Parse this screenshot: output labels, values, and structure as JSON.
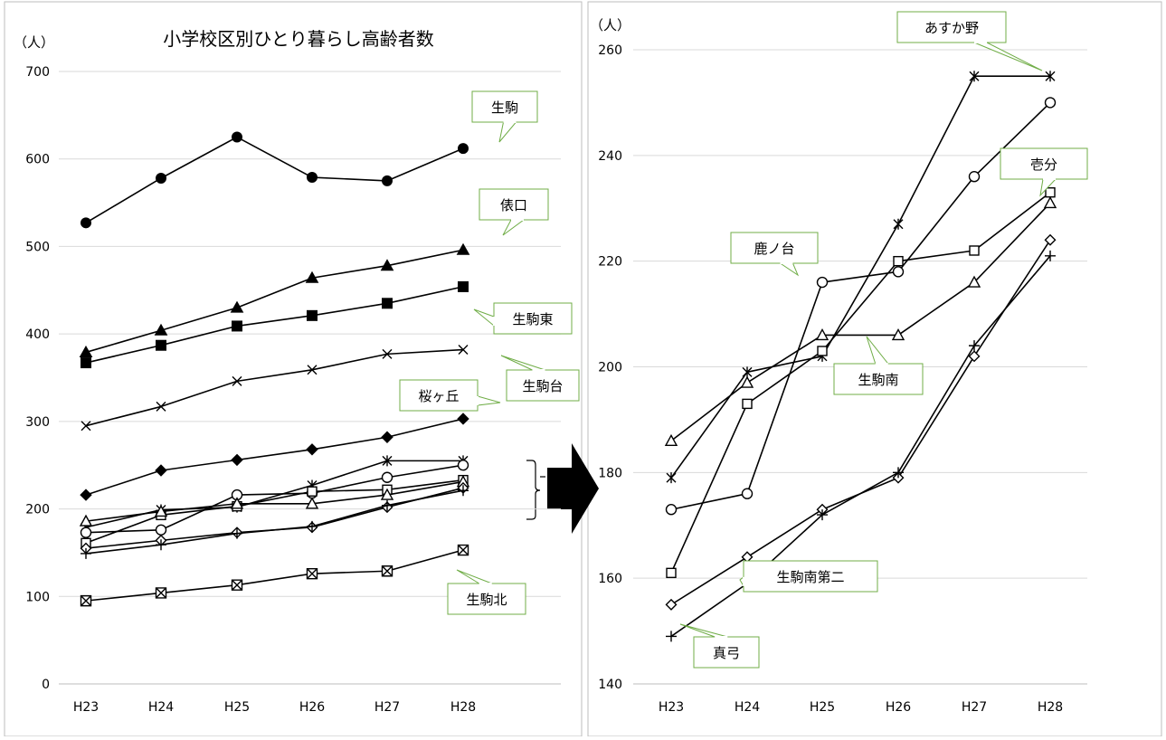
{
  "chart_data": [
    {
      "type": "line",
      "title": "小学校区別ひとり暮らし高齢者数",
      "ylabel": "（人）",
      "ylim": [
        0,
        700
      ],
      "yticks": [
        0,
        100,
        200,
        300,
        400,
        500,
        600,
        700
      ],
      "categories": [
        "H23",
        "H24",
        "H25",
        "H26",
        "H27",
        "H28"
      ],
      "grid": true,
      "series": [
        {
          "name": "生駒",
          "marker": "circle-filled",
          "values": [
            527,
            578,
            625,
            579,
            575,
            612
          ]
        },
        {
          "name": "俵口",
          "marker": "triangle-filled",
          "values": [
            379,
            404,
            430,
            464,
            478,
            496
          ]
        },
        {
          "name": "生駒東",
          "marker": "square-filled",
          "values": [
            367,
            387,
            409,
            421,
            435,
            454
          ]
        },
        {
          "name": "生駒台",
          "marker": "x",
          "values": [
            295,
            317,
            346,
            359,
            377,
            382
          ]
        },
        {
          "name": "桜ヶ丘",
          "marker": "diamond-filled",
          "values": [
            216,
            244,
            256,
            268,
            282,
            303
          ]
        },
        {
          "name": "あすか野",
          "marker": "asterisk",
          "values": [
            179,
            199,
            202,
            227,
            255,
            255
          ]
        },
        {
          "name": "鹿ノ台",
          "marker": "circle",
          "values": [
            173,
            176,
            216,
            218,
            236,
            250
          ]
        },
        {
          "name": "壱分",
          "marker": "square",
          "values": [
            161,
            193,
            203,
            220,
            222,
            233
          ]
        },
        {
          "name": "生駒南",
          "marker": "triangle",
          "values": [
            186,
            197,
            206,
            206,
            216,
            231
          ]
        },
        {
          "name": "生駒南第二",
          "marker": "diamond",
          "values": [
            155,
            164,
            173,
            179,
            202,
            224
          ]
        },
        {
          "name": "真弓",
          "marker": "plus",
          "values": [
            149,
            159,
            172,
            180,
            204,
            221
          ]
        },
        {
          "name": "生駒北",
          "marker": "boxed-x",
          "values": [
            95,
            104,
            113,
            126,
            129,
            153
          ]
        }
      ]
    },
    {
      "type": "line",
      "title": "",
      "ylabel": "（人）",
      "ylim": [
        140,
        260
      ],
      "yticks": [
        140,
        160,
        180,
        200,
        220,
        240,
        260
      ],
      "categories": [
        "H23",
        "H24",
        "H25",
        "H26",
        "H27",
        "H28"
      ],
      "grid": true,
      "series": [
        {
          "name": "あすか野",
          "marker": "asterisk",
          "values": [
            179,
            199,
            202,
            227,
            255,
            255
          ]
        },
        {
          "name": "鹿ノ台",
          "marker": "circle",
          "values": [
            173,
            176,
            216,
            218,
            236,
            250
          ]
        },
        {
          "name": "壱分",
          "marker": "square",
          "values": [
            161,
            193,
            203,
            220,
            222,
            233
          ]
        },
        {
          "name": "生駒南",
          "marker": "triangle",
          "values": [
            186,
            197,
            206,
            206,
            216,
            231
          ]
        },
        {
          "name": "生駒南第二",
          "marker": "diamond",
          "values": [
            155,
            164,
            173,
            179,
            202,
            224
          ]
        },
        {
          "name": "真弓",
          "marker": "plus",
          "values": [
            149,
            159,
            172,
            180,
            204,
            221
          ]
        }
      ]
    }
  ]
}
